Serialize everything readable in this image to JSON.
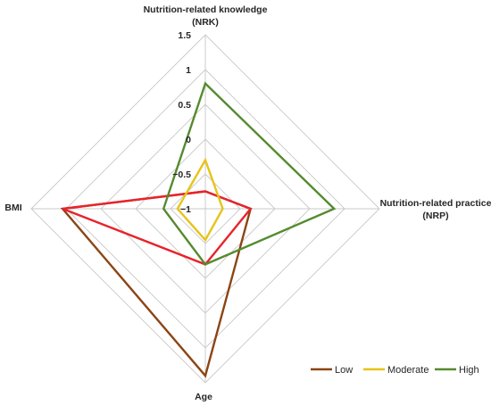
{
  "chart_data": {
    "type": "radar",
    "axes": [
      {
        "key": "nrk",
        "label_lines": [
          "Nutrition-related knowledge",
          "(NRK)"
        ]
      },
      {
        "key": "nrp",
        "label_lines": [
          "Nutrition-related practice",
          "(NRP)"
        ]
      },
      {
        "key": "age",
        "label_lines": [
          "Age"
        ]
      },
      {
        "key": "bmi",
        "label_lines": [
          "BMI"
        ]
      }
    ],
    "scale": {
      "min": -1,
      "max": 1.5,
      "ticks": [
        -1,
        -0.5,
        0,
        0.5,
        1,
        1.5
      ],
      "tick_labels": [
        "−1",
        "−0.5",
        "0",
        "0.5",
        "1",
        "1.5"
      ]
    },
    "series": [
      {
        "name": "Low",
        "color": "#8B4513",
        "values": [
          -0.75,
          -0.35,
          1.4,
          1.05
        ]
      },
      {
        "name": "Low",
        "legend": false,
        "color": "#E8232B",
        "values": [
          -0.75,
          -0.35,
          -0.2,
          1.05
        ]
      },
      {
        "name": "Moderate",
        "color": "#E6C419",
        "values": [
          -0.3,
          -0.75,
          -0.55,
          -0.6
        ]
      },
      {
        "name": "High",
        "color": "#558B2F",
        "values": [
          0.8,
          0.85,
          -0.2,
          -0.4
        ]
      }
    ],
    "legend_position": "bottom-right",
    "grid": true
  }
}
